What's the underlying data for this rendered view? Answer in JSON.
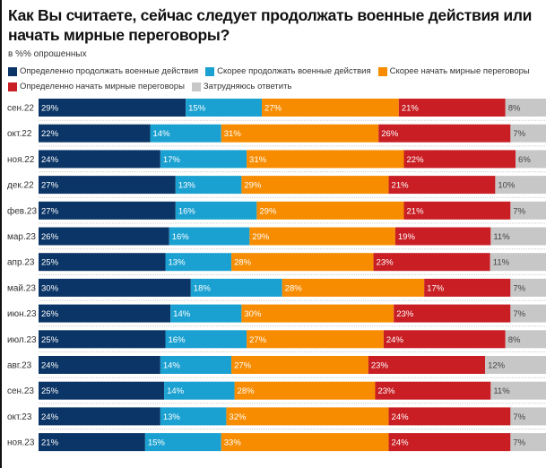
{
  "chart_data": {
    "type": "bar",
    "stacked": true,
    "orientation": "horizontal",
    "title": "Как Вы считаете, сейчас следует продолжать военные действия или начать мирные переговоры?",
    "subtitle": "в %% опрошенных",
    "legend_position": "top",
    "categories": [
      "сен.22",
      "окт.22",
      "ноя.22",
      "дек.22",
      "фев.23",
      "мар.23",
      "апр.23",
      "май.23",
      "июн.23",
      "июл.23",
      "авг.23",
      "сен.23",
      "окт.23",
      "ноя.23"
    ],
    "series": [
      {
        "name": "Определенно продолжать военные действия",
        "color": "#0b3566",
        "values": [
          29,
          22,
          24,
          27,
          27,
          26,
          25,
          30,
          26,
          25,
          24,
          25,
          24,
          21
        ]
      },
      {
        "name": "Скорее продолжать военные действия",
        "color": "#1ba1d1",
        "values": [
          15,
          14,
          17,
          13,
          16,
          16,
          13,
          18,
          14,
          16,
          14,
          14,
          13,
          15
        ]
      },
      {
        "name": "Скорее начать мирные переговоры",
        "color": "#f78c00",
        "values": [
          27,
          31,
          31,
          29,
          29,
          29,
          28,
          28,
          30,
          27,
          27,
          28,
          32,
          33
        ]
      },
      {
        "name": "Определенно начать мирные переговоры",
        "color": "#c81e24",
        "values": [
          21,
          26,
          22,
          21,
          21,
          19,
          23,
          17,
          23,
          24,
          23,
          23,
          24,
          24
        ]
      },
      {
        "name": "Затрудняюсь ответить",
        "color": "#c7c7c7",
        "values": [
          8,
          7,
          6,
          10,
          7,
          11,
          11,
          7,
          7,
          8,
          12,
          11,
          7,
          7
        ]
      }
    ],
    "value_suffix": "%"
  }
}
